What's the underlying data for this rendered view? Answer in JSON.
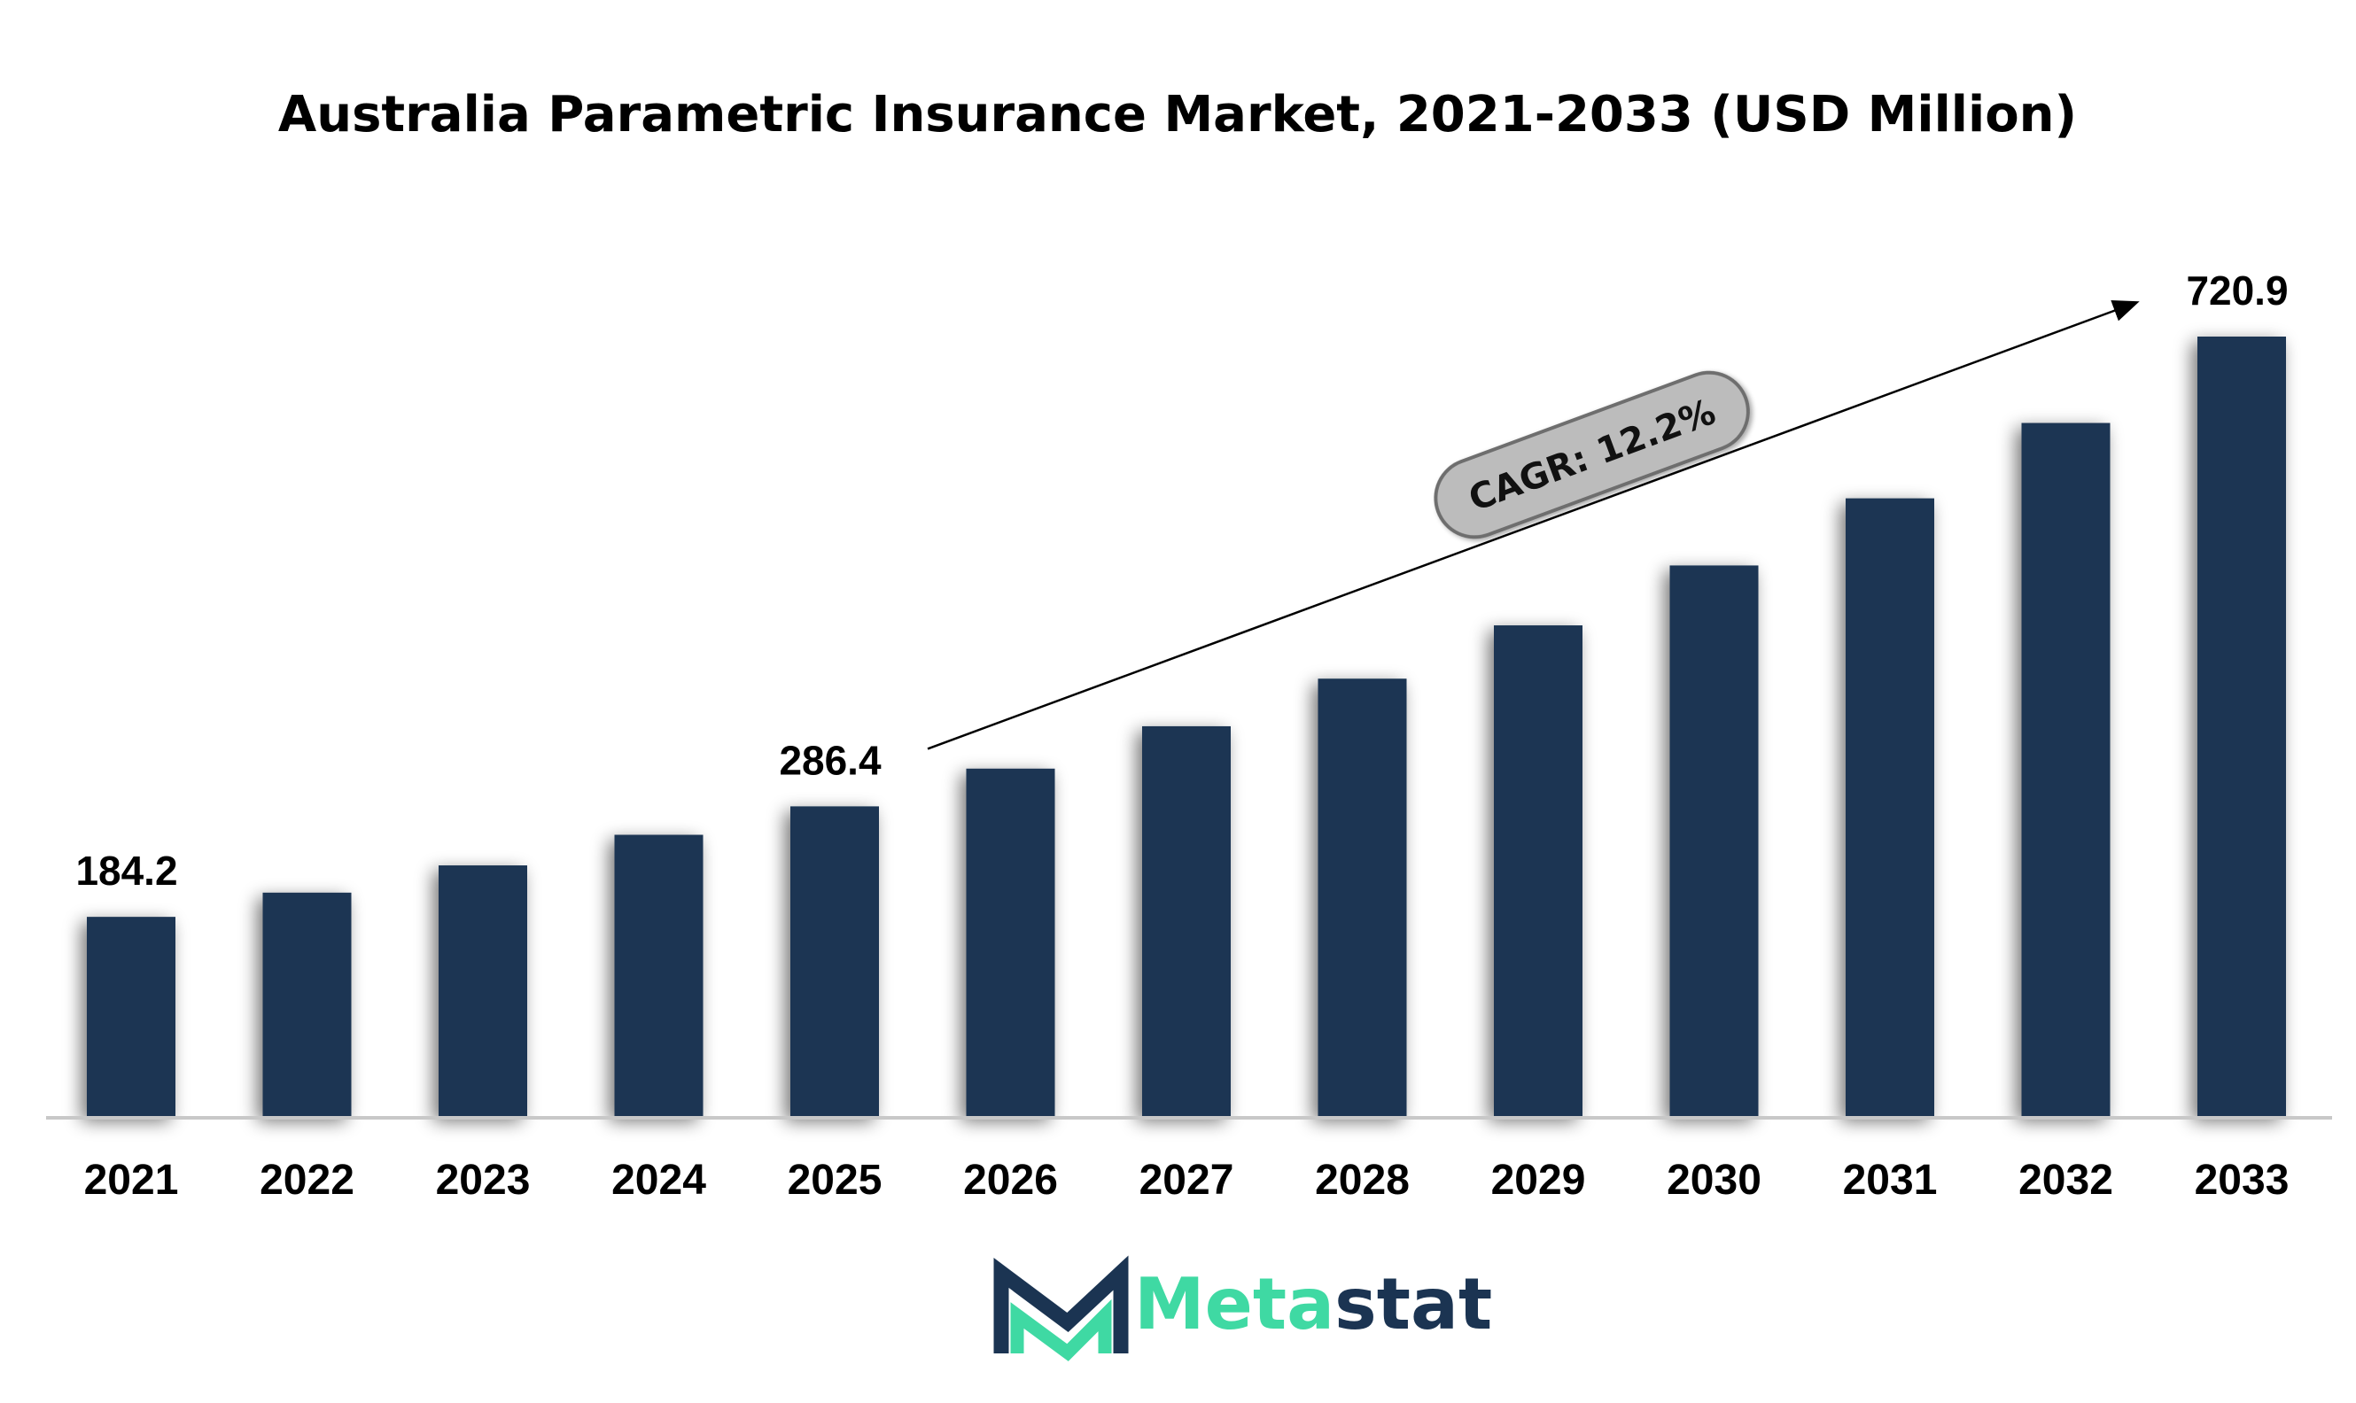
{
  "chart_data": {
    "type": "bar",
    "title": "Australia Parametric Insurance Market, 2021-2033 (USD Million)",
    "categories": [
      "2021",
      "2022",
      "2023",
      "2024",
      "2025",
      "2026",
      "2027",
      "2028",
      "2029",
      "2030",
      "2031",
      "2032",
      "2033"
    ],
    "values": [
      184.2,
      206.6,
      231.8,
      260.1,
      286.4,
      321.3,
      360.5,
      404.5,
      453.8,
      509.2,
      571.3,
      641.0,
      720.9
    ],
    "data_labels": [
      {
        "category": "2021",
        "text": "184.2"
      },
      {
        "category": "2025",
        "text": "286.4"
      },
      {
        "category": "2033",
        "text": "720.9"
      }
    ],
    "annotation": {
      "text": "CAGR: 12.2%",
      "from_category": "2025",
      "to_category": "2033"
    },
    "ylim": [
      0,
      720.9
    ],
    "grid": false,
    "legend": "none",
    "colors": {
      "bar": "#1b3452",
      "axis": "#c8c8c8",
      "badge_fill": "#bcbcbc",
      "badge_stroke": "#6e6e6e"
    }
  },
  "logo": {
    "text_part1": "Meta",
    "text_part2": "stat",
    "color_part1": "#3fd9a3",
    "color_part2": "#1b3452"
  }
}
